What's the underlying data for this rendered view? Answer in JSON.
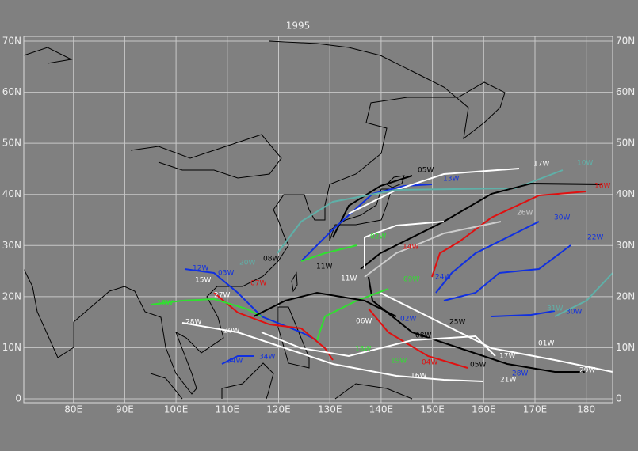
{
  "title": "1995",
  "lat_ticks": [
    {
      "value": 0,
      "label": "0"
    },
    {
      "value": 10,
      "label": "10N"
    },
    {
      "value": 20,
      "label": "20N"
    },
    {
      "value": 30,
      "label": "30N"
    },
    {
      "value": 40,
      "label": "40N"
    },
    {
      "value": 50,
      "label": "50N"
    },
    {
      "value": 60,
      "label": "60N"
    },
    {
      "value": 70,
      "label": "70N"
    }
  ],
  "lon_ticks": [
    {
      "value": 80,
      "label": "80E"
    },
    {
      "value": 90,
      "label": "90E"
    },
    {
      "value": 100,
      "label": "100E"
    },
    {
      "value": 110,
      "label": "110E"
    },
    {
      "value": 120,
      "label": "120E"
    },
    {
      "value": 130,
      "label": "130E"
    },
    {
      "value": 140,
      "label": "140E"
    },
    {
      "value": 150,
      "label": "150E"
    },
    {
      "value": 160,
      "label": "160E"
    },
    {
      "value": 170,
      "label": "170E"
    },
    {
      "value": 180,
      "label": "180"
    }
  ],
  "storms": [
    "12W",
    "15W",
    "20W",
    "08W",
    "11W",
    "02W",
    "14W",
    "09W",
    "24W",
    "25W",
    "06W",
    "02W",
    "18W",
    "28W",
    "13W",
    "05W",
    "17W",
    "10W",
    "16W",
    "26W",
    "30W",
    "22W",
    "31W",
    "30W",
    "01W",
    "29W",
    "17W",
    "28W",
    "21W",
    "05W",
    "04W",
    "19W",
    "18W",
    "16W",
    "34W",
    "34W",
    "07W",
    "03W",
    "27W",
    "20W",
    "11W",
    "08W"
  ]
}
